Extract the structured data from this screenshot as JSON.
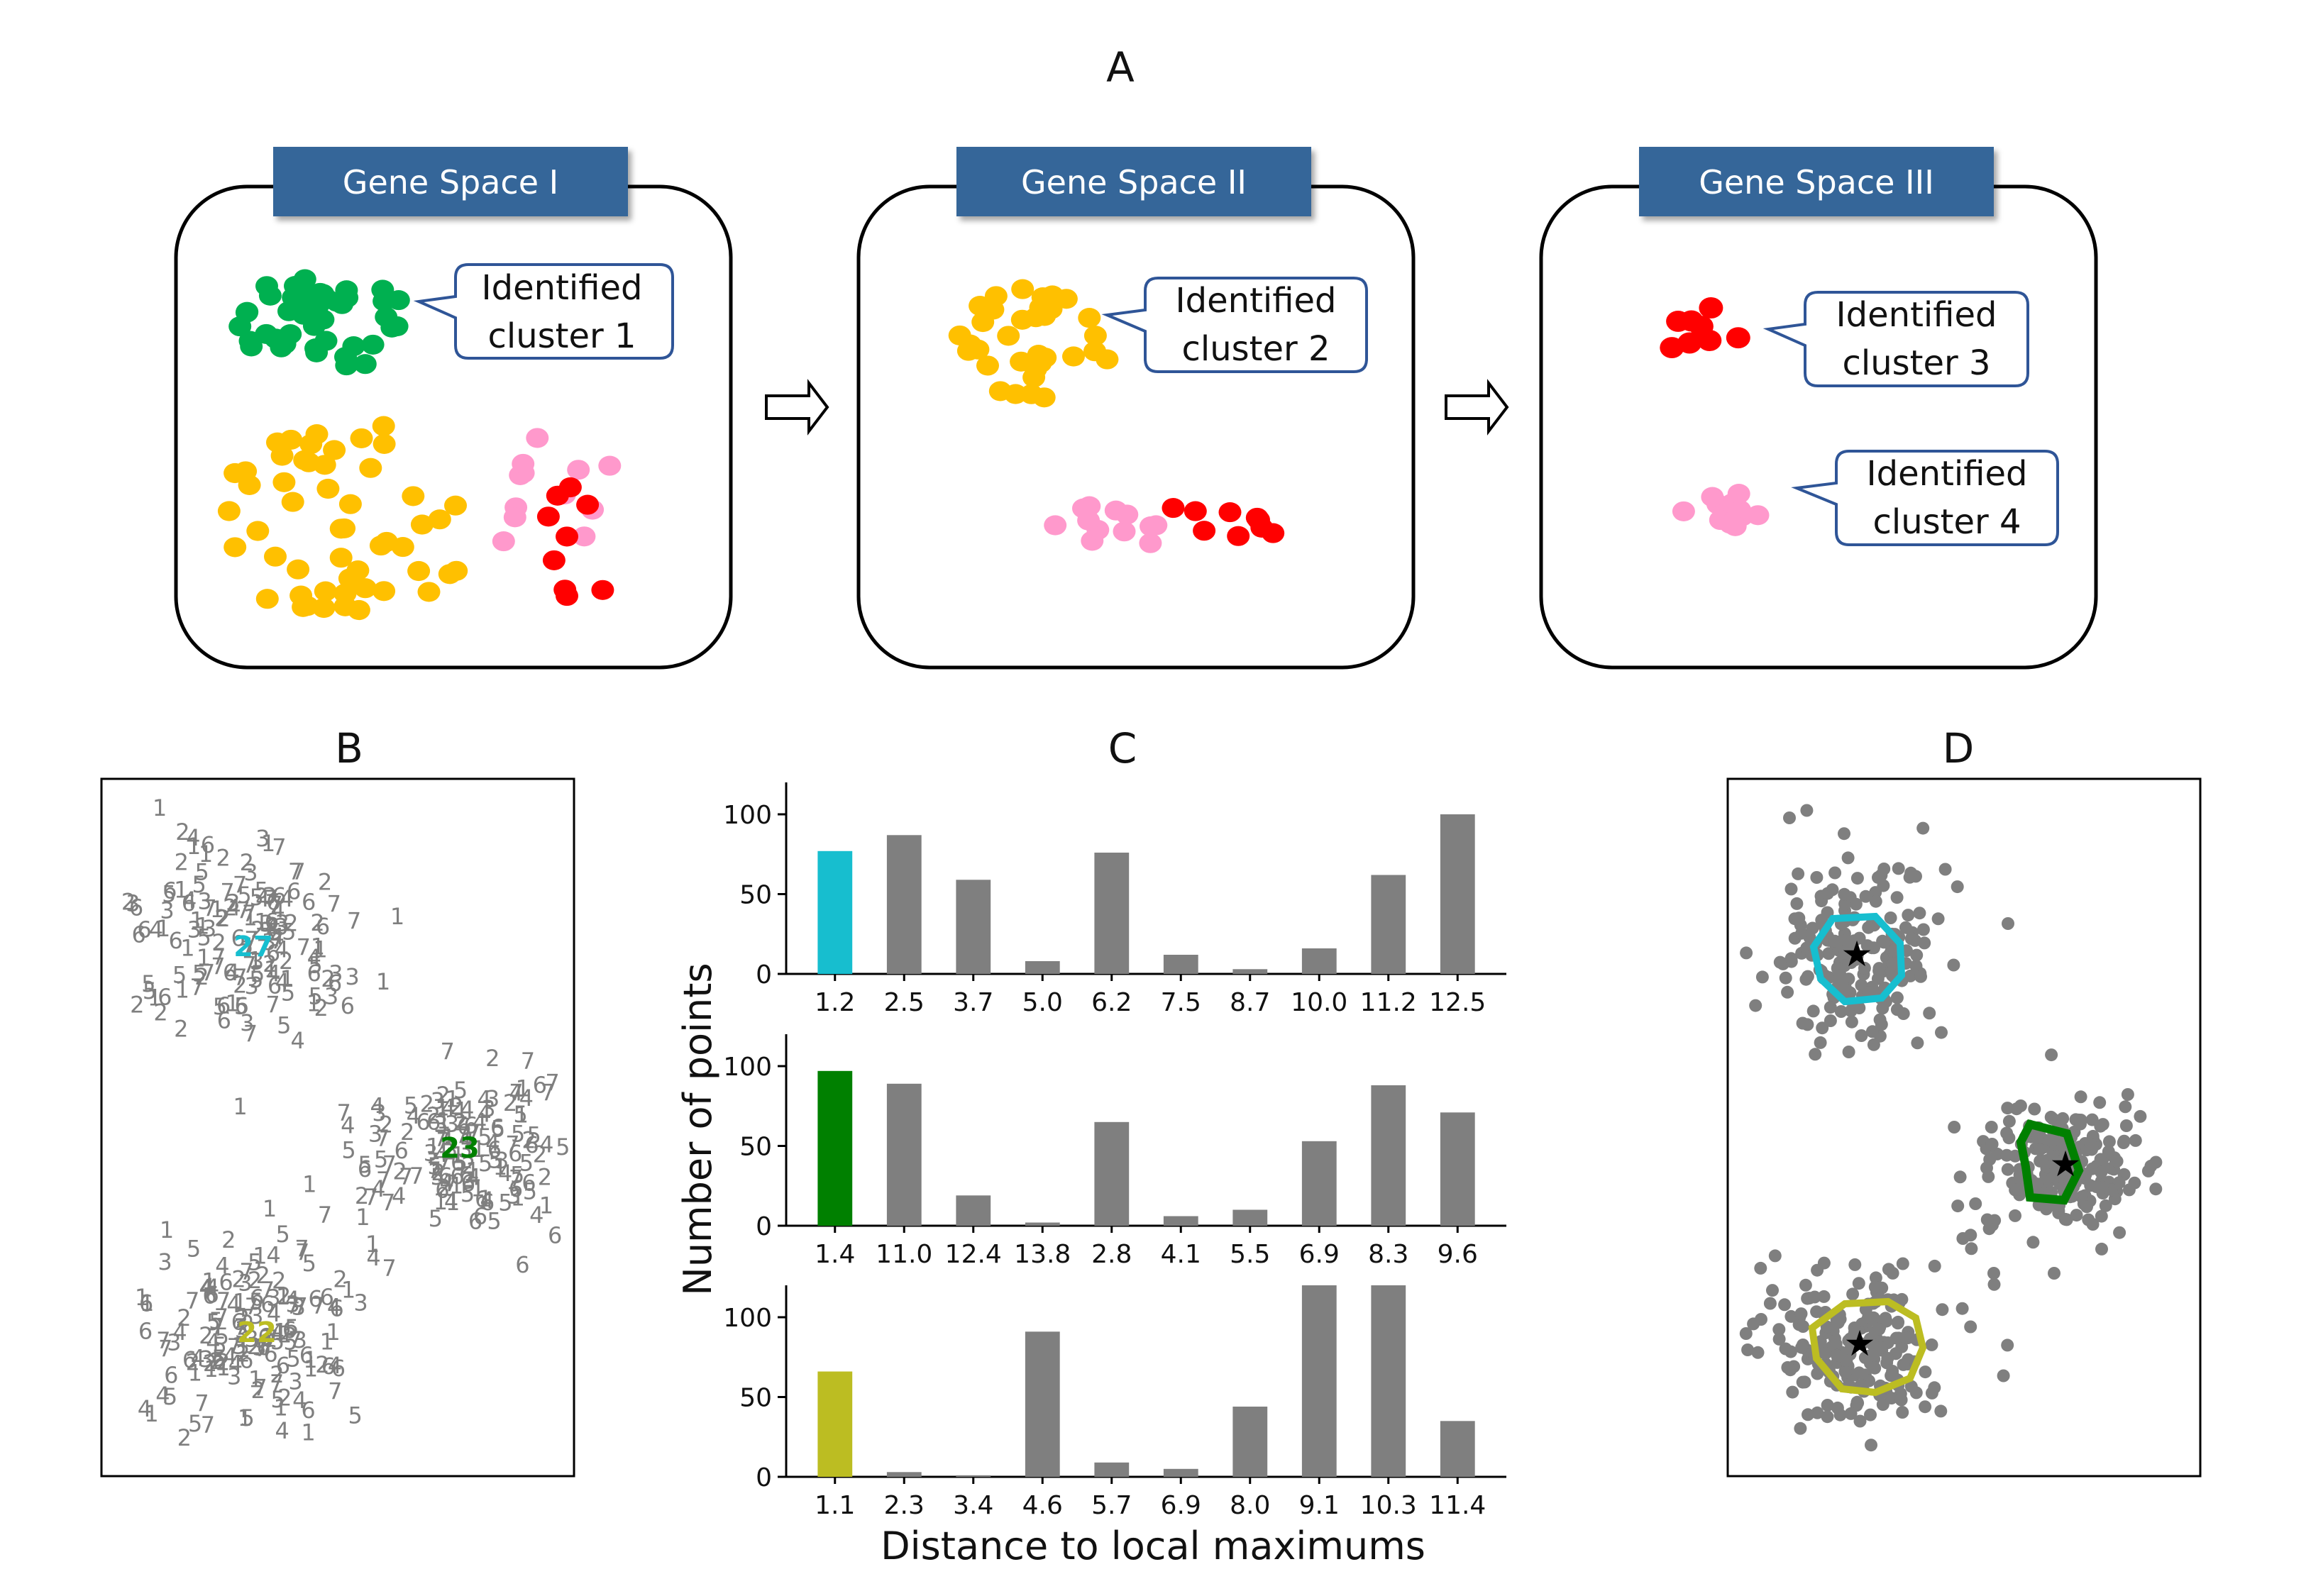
{
  "panels": {
    "a": {
      "letter": "A"
    },
    "b": {
      "letter": "B"
    },
    "c": {
      "letter": "C"
    },
    "d": {
      "letter": "D"
    }
  },
  "gene_spaces": [
    {
      "title": "Gene Space I",
      "callouts": [
        [
          "Identified",
          "cluster 1"
        ]
      ]
    },
    {
      "title": "Gene Space II",
      "callouts": [
        [
          "Identified",
          "cluster 2"
        ]
      ]
    },
    {
      "title": "Gene Space III",
      "callouts": [
        [
          "Identified",
          "cluster 3"
        ],
        [
          "Identified",
          "cluster 4"
        ]
      ]
    }
  ],
  "colors": {
    "green": "#00b050",
    "yellow": "#ffc000",
    "pink": "#ff99cc",
    "red": "#ff0000",
    "banner": "#366699",
    "callout_border": "#2f5597",
    "gray": "#7f7f7f",
    "cyan": "#17becf",
    "dark_green": "#008000",
    "olive": "#bcbd22"
  },
  "panel_b": {
    "cluster_labels": [
      {
        "text": "27",
        "color": "#17becf"
      },
      {
        "text": "23",
        "color": "#008000"
      },
      {
        "text": "22",
        "color": "#bcbd22"
      }
    ]
  },
  "chart_data": [
    {
      "type": "bar",
      "categories": [
        "1.2",
        "2.5",
        "3.7",
        "5.0",
        "6.2",
        "7.5",
        "8.7",
        "10.0",
        "11.2",
        "12.5"
      ],
      "values": [
        77,
        87,
        59,
        8,
        76,
        12,
        3,
        16,
        62,
        100
      ],
      "highlight_color": "#17becf",
      "bar_color": "#7f7f7f",
      "yticks": [
        0,
        50,
        100
      ],
      "ylim": [
        0,
        120
      ]
    },
    {
      "type": "bar",
      "categories": [
        "1.4",
        "11.0",
        "12.4",
        "13.8",
        "2.8",
        "4.1",
        "5.5",
        "6.9",
        "8.3",
        "9.6"
      ],
      "values": [
        97,
        89,
        19,
        2,
        65,
        6,
        10,
        53,
        88,
        71
      ],
      "highlight_color": "#008000",
      "bar_color": "#7f7f7f",
      "yticks": [
        0,
        50,
        100
      ],
      "ylim": [
        0,
        120
      ]
    },
    {
      "type": "bar",
      "categories": [
        "1.1",
        "2.3",
        "3.4",
        "4.6",
        "5.7",
        "6.9",
        "8.0",
        "9.1",
        "10.3",
        "11.4"
      ],
      "values": [
        66,
        3,
        1,
        91,
        9,
        5,
        44,
        120,
        120,
        35
      ],
      "highlight_color": "#bcbd22",
      "bar_color": "#7f7f7f",
      "yticks": [
        0,
        50,
        100
      ],
      "ylim": [
        0,
        120
      ],
      "xlabel": "Distance to local maximums"
    }
  ],
  "shared_ylabel": "Number of points"
}
